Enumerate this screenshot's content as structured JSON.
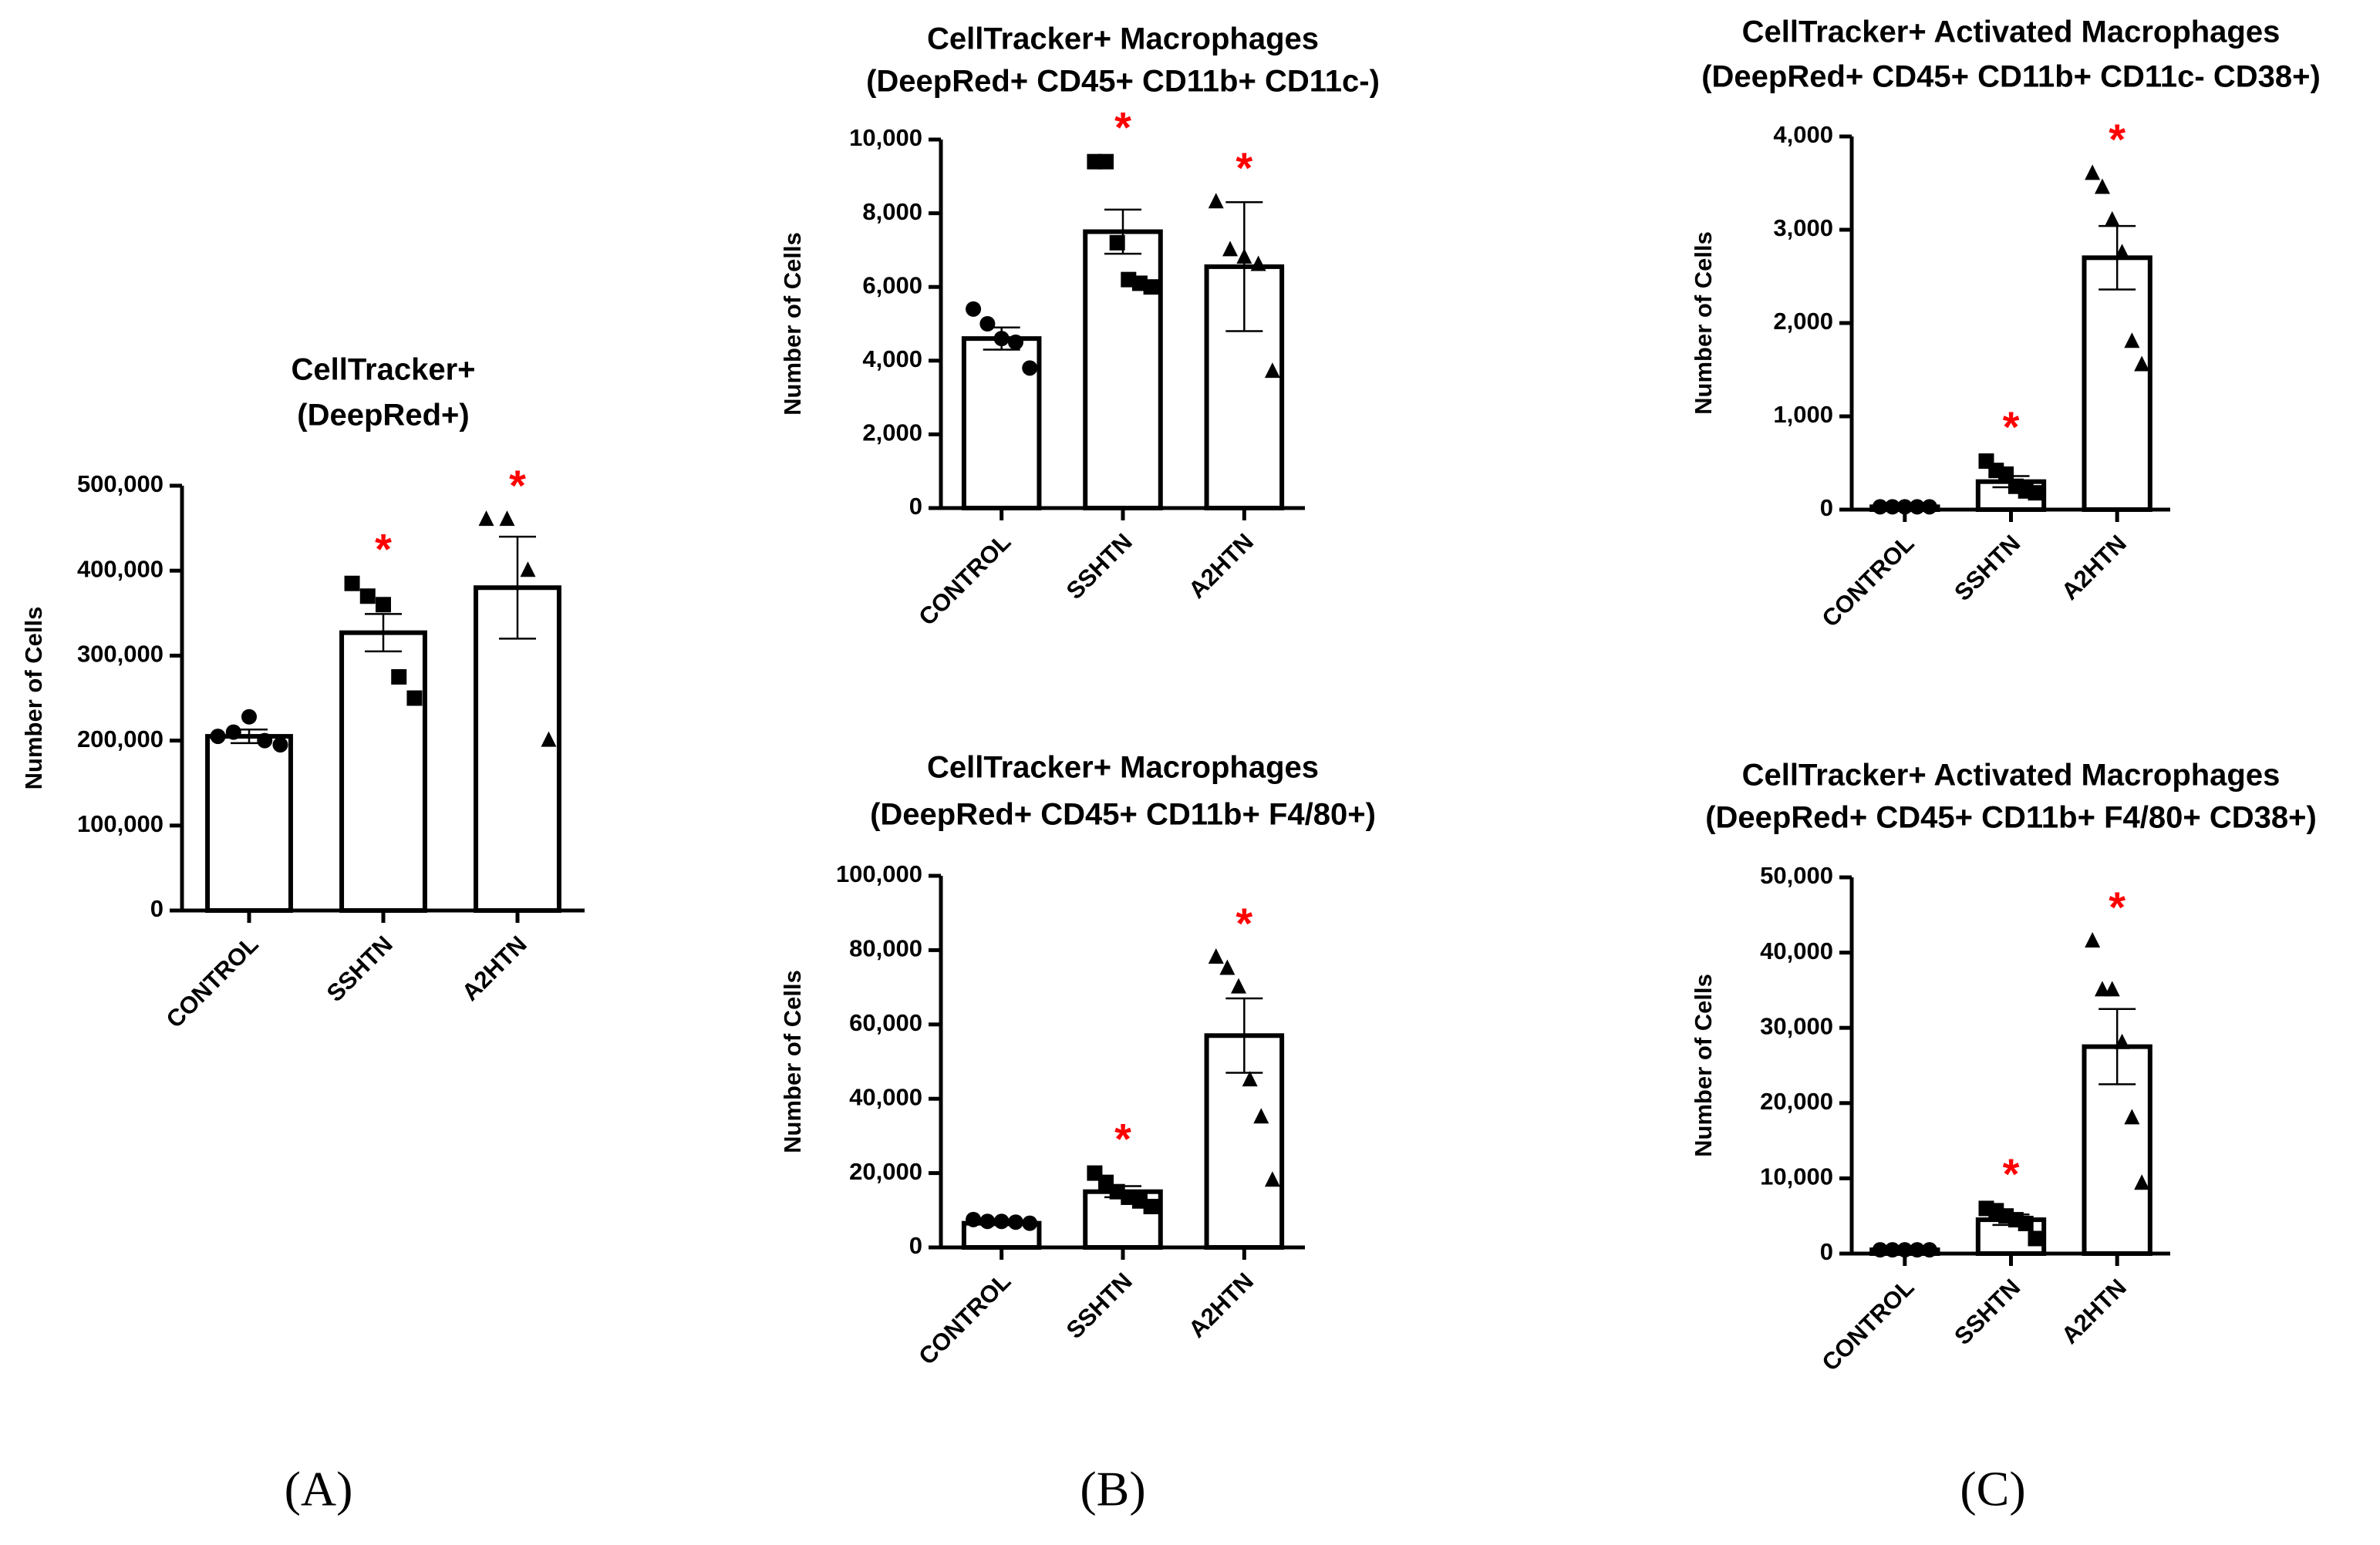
{
  "chart_data": [
    {
      "type": "bar",
      "title": "CellTracker+",
      "subtitle": "(DeepRed+)",
      "ylabel": "Number of  Cells",
      "categories": [
        "CONTROL",
        "SSHTN",
        "A2HTN"
      ],
      "values": [
        205000,
        327000,
        380000
      ],
      "errors": [
        8000,
        22000,
        60000
      ],
      "points": [
        [
          205000,
          210000,
          228000,
          200000,
          195000
        ],
        [
          385000,
          370000,
          360000,
          275000,
          250000
        ],
        [
          460000,
          460000,
          400000,
          200000
        ]
      ],
      "markers": [
        "circle",
        "square",
        "triangle"
      ],
      "annotations": [
        null,
        "*",
        "*"
      ],
      "annotation_color": "#ff0000",
      "color": "#ffffff",
      "edge_color": "#000000",
      "ylim": [
        0,
        500000
      ],
      "yticks": [
        0,
        {
          "value": 100000,
          "label": "100,000"
        },
        {
          "value": 200000,
          "label": "200,000"
        },
        {
          "value": 300000,
          "label": "300,000"
        },
        {
          "value": 400000,
          "label": "400,000"
        },
        {
          "value": 500000,
          "label": "500,000"
        }
      ]
    },
    {
      "type": "bar",
      "title": "CellTracker+ Macrophages",
      "subtitle": "(DeepRed+ CD45+ CD11b+ CD11c-)",
      "ylabel": "Number of  Cells",
      "categories": [
        "CONTROL",
        "SSHTN",
        "A2HTN"
      ],
      "values": [
        4600,
        7500,
        6550
      ],
      "errors": [
        300,
        600,
        1750
      ],
      "points": [
        [
          5400,
          5000,
          4600,
          4500,
          3800
        ],
        [
          9400,
          9400,
          7200,
          6200,
          6100,
          6000
        ],
        [
          8300,
          7000,
          6800,
          6600,
          3700
        ]
      ],
      "markers": [
        "circle",
        "square",
        "triangle"
      ],
      "annotations": [
        null,
        "*",
        "*"
      ],
      "annotation_color": "#ff0000",
      "color": "#ffffff",
      "edge_color": "#000000",
      "ylim": [
        0,
        10000
      ],
      "yticks": [
        0,
        {
          "value": 2000,
          "label": "2,000"
        },
        {
          "value": 4000,
          "label": "4,000"
        },
        {
          "value": 6000,
          "label": "6,000"
        },
        {
          "value": 8000,
          "label": "8,000"
        },
        {
          "value": 10000,
          "label": "10,000"
        }
      ]
    },
    {
      "type": "bar",
      "title": "CellTracker+ Macrophages",
      "subtitle": "(DeepRed+ CD45+ CD11b+ F4/80+)",
      "ylabel": "Number of  Cells",
      "categories": [
        "CONTROL",
        "SSHTN",
        "A2HTN"
      ],
      "values": [
        6500,
        15000,
        57000
      ],
      "errors": [
        500,
        1500,
        10000
      ],
      "points": [
        [
          7500,
          7000,
          7000,
          6800,
          6500
        ],
        [
          20000,
          17500,
          15000,
          13500,
          12500,
          11000
        ],
        [
          78000,
          75000,
          70000,
          45000,
          35000,
          18000
        ]
      ],
      "markers": [
        "circle",
        "square",
        "triangle"
      ],
      "annotations": [
        null,
        "*",
        "*"
      ],
      "annotation_color": "#ff0000",
      "color": "#ffffff",
      "edge_color": "#000000",
      "ylim": [
        0,
        100000
      ],
      "yticks": [
        0,
        {
          "value": 20000,
          "label": "20,000"
        },
        {
          "value": 40000,
          "label": "40,000"
        },
        {
          "value": 60000,
          "label": "60,000"
        },
        {
          "value": 80000,
          "label": "80,000"
        },
        {
          "value": 100000,
          "label": "100,000"
        }
      ]
    },
    {
      "type": "bar",
      "title": "CellTracker+ Activated Macrophages",
      "subtitle": "(DeepRed+ CD45+ CD11b+ CD11c- CD38+)",
      "ylabel": "Number of  Cells",
      "categories": [
        "CONTROL",
        "SSHTN",
        "A2HTN"
      ],
      "values": [
        30,
        300,
        2700
      ],
      "errors": [
        10,
        60,
        340
      ],
      "points": [
        [
          30,
          30,
          30,
          30,
          30
        ],
        [
          520,
          420,
          380,
          250,
          200,
          180
        ],
        [
          3600,
          3450,
          3100,
          2750,
          1800,
          1550
        ]
      ],
      "markers": [
        "circle",
        "square",
        "triangle"
      ],
      "annotations": [
        null,
        "*",
        "*"
      ],
      "annotation_color": "#ff0000",
      "color": "#ffffff",
      "edge_color": "#000000",
      "ylim": [
        0,
        4000
      ],
      "yticks": [
        0,
        {
          "value": 1000,
          "label": "1,000"
        },
        {
          "value": 2000,
          "label": "2,000"
        },
        {
          "value": 3000,
          "label": "3,000"
        },
        {
          "value": 4000,
          "label": "4,000"
        }
      ]
    },
    {
      "type": "bar",
      "title": "CellTracker+ Activated Macrophages",
      "subtitle": "(DeepRed+ CD45+ CD11b+ F4/80+ CD38+)",
      "ylabel": "Number of  Cells",
      "categories": [
        "CONTROL",
        "SSHTN",
        "A2HTN"
      ],
      "values": [
        500,
        4500,
        27500
      ],
      "errors": [
        100,
        700,
        5000
      ],
      "points": [
        [
          500,
          500,
          500,
          500,
          500
        ],
        [
          6000,
          5700,
          5000,
          4500,
          4000,
          2000
        ],
        [
          41500,
          35000,
          35000,
          28000,
          18000,
          9300
        ]
      ],
      "markers": [
        "circle",
        "square",
        "triangle"
      ],
      "annotations": [
        null,
        "*",
        "*"
      ],
      "annotation_color": "#ff0000",
      "color": "#ffffff",
      "edge_color": "#000000",
      "ylim": [
        0,
        50000
      ],
      "yticks": [
        0,
        {
          "value": 10000,
          "label": "10,000"
        },
        {
          "value": 20000,
          "label": "20,000"
        },
        {
          "value": 30000,
          "label": "30,000"
        },
        {
          "value": 40000,
          "label": "40,000"
        },
        {
          "value": 50000,
          "label": "50,000"
        }
      ]
    }
  ],
  "panel_labels": [
    "(A)",
    "(B)",
    "(C)"
  ]
}
